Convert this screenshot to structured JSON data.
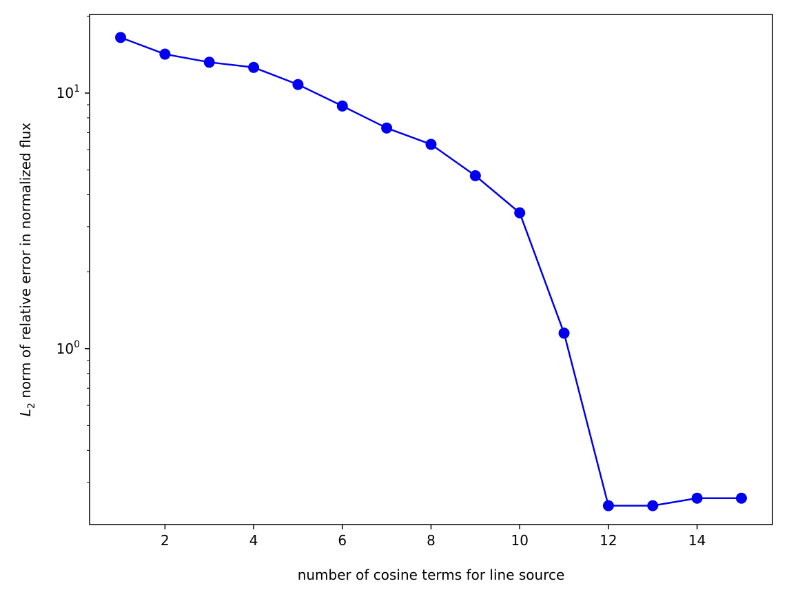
{
  "chart_data": {
    "type": "line",
    "title": "",
    "xlabel": "number of cosine terms for line source",
    "ylabel_symbol": "L",
    "ylabel_subscript": "2",
    "ylabel": " norm of relative error in normalized flux",
    "xscale": "linear",
    "yscale": "log",
    "xlim": [
      0.3,
      15.7
    ],
    "ylim": [
      0.205,
      20.3
    ],
    "xticks": [
      2,
      4,
      6,
      8,
      10,
      12,
      14
    ],
    "xtick_labels": [
      "2",
      "4",
      "6",
      "8",
      "10",
      "12",
      "14"
    ],
    "yticks_major": [
      1,
      10
    ],
    "ytick_major_base": [
      "10",
      "10"
    ],
    "ytick_major_exponent": [
      "0",
      "1"
    ],
    "yticks_minor": [
      0.3,
      0.4,
      0.5,
      0.6,
      0.7,
      0.8,
      0.9,
      2,
      3,
      4,
      5,
      6,
      7,
      8,
      9,
      20
    ],
    "grid": false,
    "legend": "none",
    "series": [
      {
        "color": "#0000ee",
        "marker": "circle",
        "x": [
          1,
          2,
          3,
          4,
          5,
          6,
          7,
          8,
          9,
          10,
          11,
          12,
          13,
          14,
          15
        ],
        "y": [
          16.5,
          14.2,
          13.2,
          12.6,
          10.8,
          8.9,
          7.3,
          6.3,
          4.75,
          3.4,
          1.15,
          0.243,
          0.243,
          0.26,
          0.26
        ]
      }
    ]
  }
}
